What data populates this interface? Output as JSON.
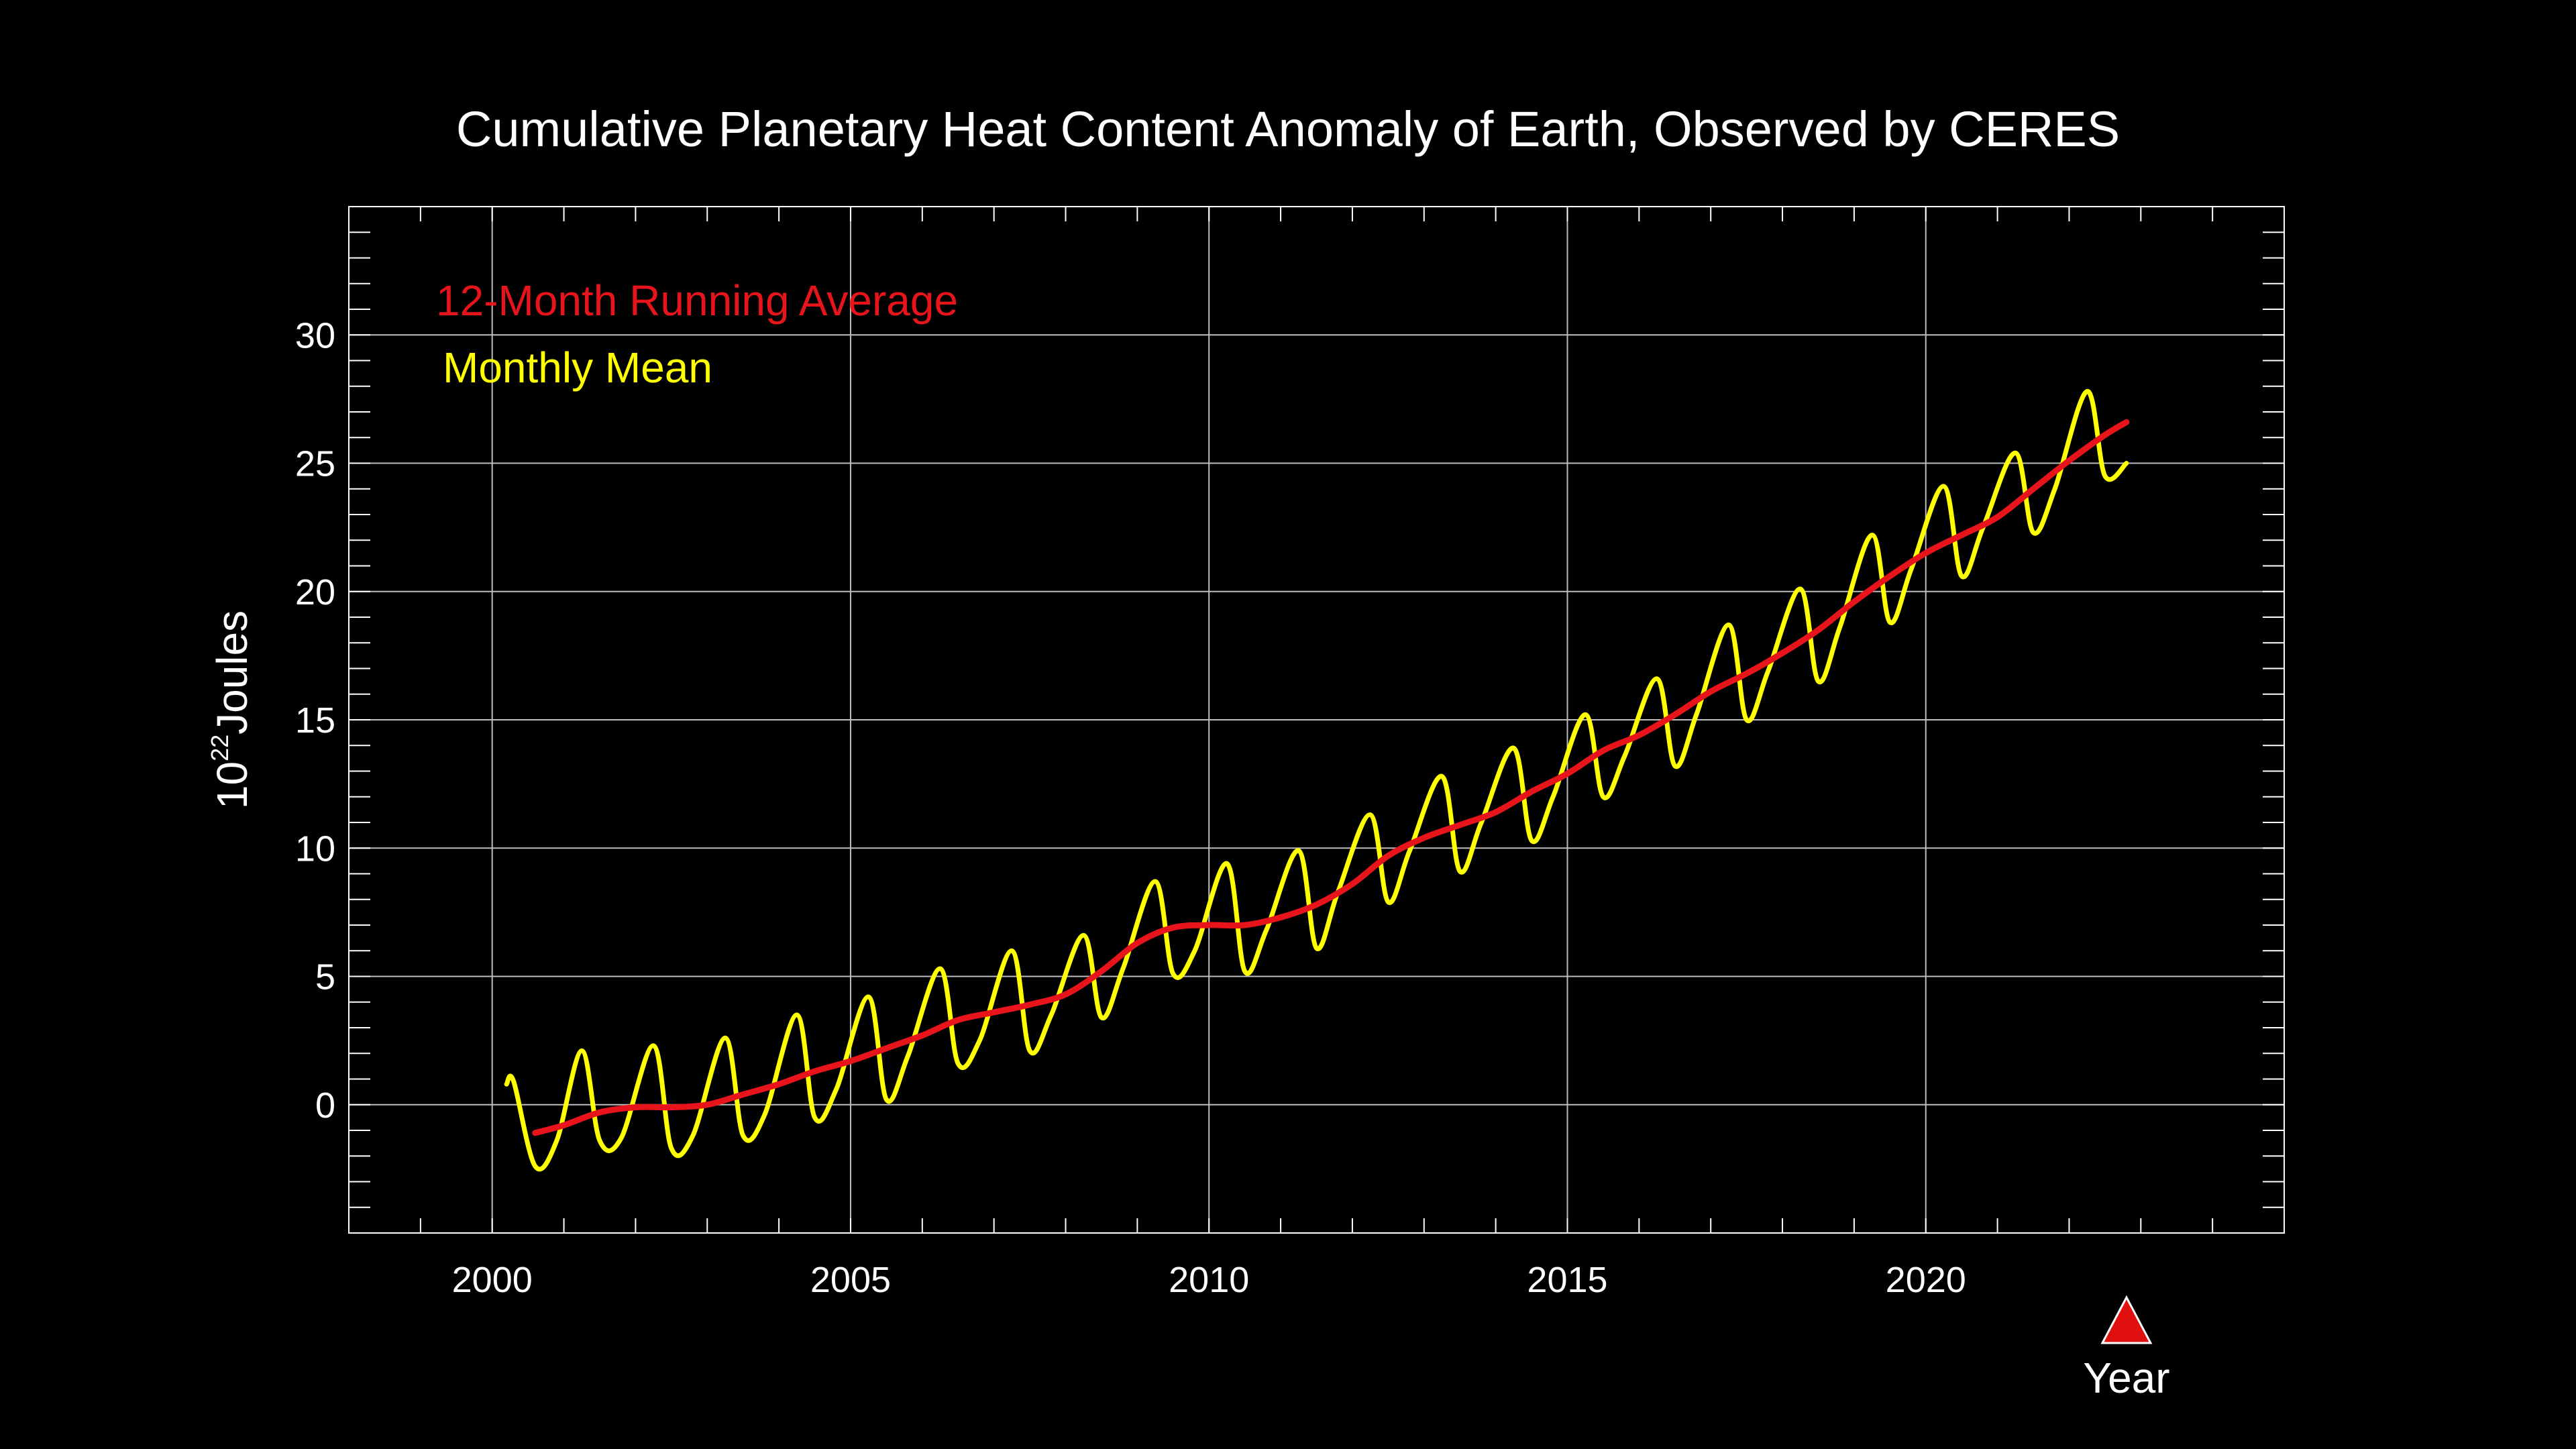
{
  "chart_data": {
    "type": "line",
    "title": "Cumulative Planetary Heat Content Anomaly of Earth, Observed by CERES",
    "xlabel": "Year",
    "ylabel": {
      "base": "10",
      "exponent": "22",
      "unit": "Joules"
    },
    "xlim": [
      1998,
      2025
    ],
    "ylim": [
      -5,
      35
    ],
    "x_ticks": [
      2000,
      2005,
      2010,
      2015,
      2020
    ],
    "x_tick_labels": [
      "2000",
      "2005",
      "2010",
      "2015",
      "2020"
    ],
    "y_ticks": [
      0,
      5,
      10,
      15,
      20,
      25,
      30
    ],
    "y_tick_labels": [
      "0",
      "5",
      "10",
      "15",
      "20",
      "25",
      "30"
    ],
    "grid": true,
    "legend_position": "top-left",
    "colors": {
      "background": "#000000",
      "axes": "#ffffff",
      "grid": "#bdbdbd",
      "running_average": "#e8141b",
      "monthly_mean": "#ffff00",
      "marker": "#e01010"
    },
    "marker": {
      "shape": "triangle-up",
      "x": 2022.8
    },
    "series": [
      {
        "name": "12-Month Running Average",
        "color": "#e8141b",
        "x": [
          2000.6,
          2001.0,
          2001.5,
          2002.0,
          2002.5,
          2003.0,
          2003.5,
          2004.0,
          2004.5,
          2005.0,
          2005.5,
          2006.0,
          2006.5,
          2007.0,
          2007.5,
          2008.0,
          2008.5,
          2009.0,
          2009.5,
          2010.0,
          2010.5,
          2011.0,
          2011.5,
          2012.0,
          2012.5,
          2013.0,
          2013.5,
          2014.0,
          2014.5,
          2015.0,
          2015.5,
          2016.0,
          2016.5,
          2017.0,
          2017.5,
          2018.0,
          2018.5,
          2019.0,
          2019.5,
          2020.0,
          2020.5,
          2021.0,
          2021.5,
          2022.0,
          2022.5,
          2022.8
        ],
        "values": [
          -1.1,
          -0.8,
          -0.3,
          -0.1,
          -0.1,
          0.0,
          0.4,
          0.8,
          1.3,
          1.7,
          2.2,
          2.7,
          3.3,
          3.6,
          3.9,
          4.3,
          5.2,
          6.3,
          6.9,
          7.0,
          7.0,
          7.3,
          7.8,
          8.6,
          9.7,
          10.4,
          10.9,
          11.4,
          12.2,
          12.9,
          13.8,
          14.4,
          15.2,
          16.1,
          16.8,
          17.6,
          18.5,
          19.6,
          20.6,
          21.5,
          22.2,
          22.9,
          24.0,
          25.1,
          26.1,
          26.6
        ]
      },
      {
        "name": "Monthly Mean",
        "color": "#ffff00",
        "x": [
          2000.2,
          2000.3,
          2000.6,
          2000.9,
          2001.25,
          2001.5,
          2001.8,
          2002.25,
          2002.5,
          2002.8,
          2003.25,
          2003.5,
          2003.8,
          2004.25,
          2004.5,
          2004.8,
          2005.25,
          2005.5,
          2005.8,
          2006.25,
          2006.5,
          2006.8,
          2007.25,
          2007.5,
          2007.8,
          2008.25,
          2008.5,
          2008.8,
          2009.25,
          2009.5,
          2009.8,
          2010.25,
          2010.5,
          2010.8,
          2011.25,
          2011.5,
          2011.8,
          2012.25,
          2012.5,
          2012.8,
          2013.25,
          2013.5,
          2013.8,
          2014.25,
          2014.5,
          2014.8,
          2015.25,
          2015.5,
          2015.8,
          2016.25,
          2016.5,
          2016.8,
          2017.25,
          2017.5,
          2017.8,
          2018.25,
          2018.5,
          2018.8,
          2019.25,
          2019.5,
          2019.8,
          2020.25,
          2020.5,
          2020.8,
          2021.25,
          2021.5,
          2021.8,
          2022.25,
          2022.5,
          2022.8
        ],
        "values": [
          0.8,
          0.9,
          -2.4,
          -1.4,
          2.1,
          -1.4,
          -1.3,
          2.3,
          -1.7,
          -1.2,
          2.6,
          -1.2,
          -0.4,
          3.5,
          -0.5,
          0.6,
          4.2,
          0.2,
          1.9,
          5.3,
          1.6,
          2.5,
          6.0,
          2.1,
          3.5,
          6.6,
          3.4,
          5.3,
          8.7,
          5.1,
          6.0,
          9.4,
          5.2,
          6.8,
          9.9,
          6.1,
          8.3,
          11.3,
          7.9,
          9.9,
          12.8,
          9.1,
          11.0,
          13.9,
          10.3,
          12.0,
          15.2,
          12.0,
          13.6,
          16.6,
          13.2,
          15.2,
          18.7,
          15.0,
          16.9,
          20.1,
          16.5,
          18.6,
          22.2,
          18.8,
          20.9,
          24.1,
          20.6,
          22.5,
          25.4,
          22.3,
          24.0,
          27.8,
          24.5,
          25.0
        ]
      }
    ]
  }
}
